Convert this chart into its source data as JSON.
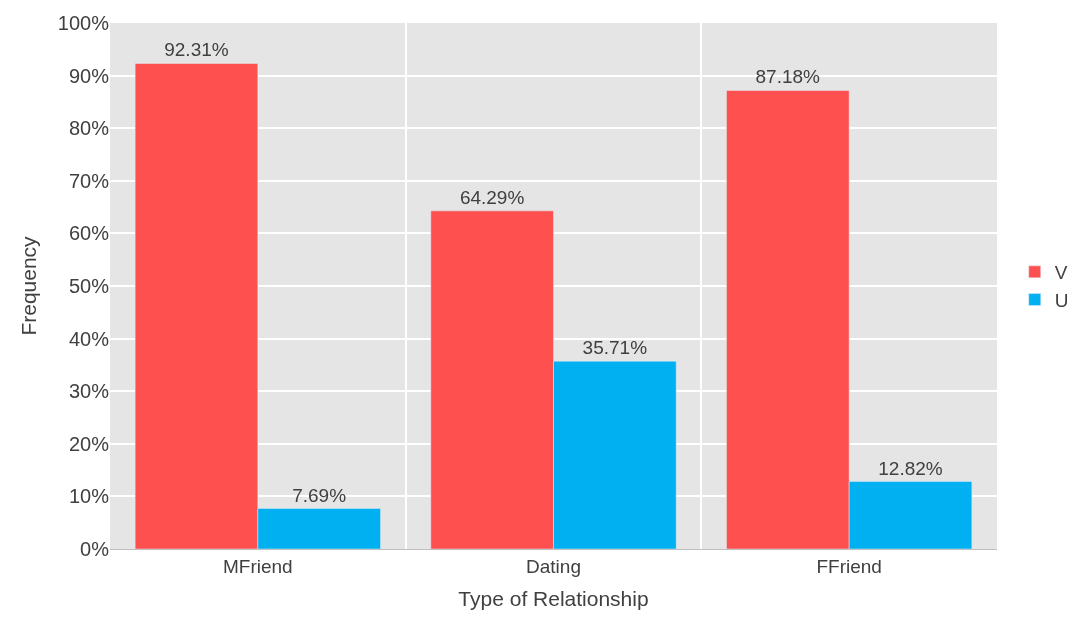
{
  "chart_data": {
    "type": "bar",
    "xlabel": "Type of Relationship",
    "ylabel": "Frequency",
    "categories": [
      "MFriend",
      "Dating",
      "FFriend"
    ],
    "series": [
      {
        "name": "V",
        "color": "#ff5050",
        "values": [
          92.31,
          64.29,
          87.18
        ],
        "value_labels": [
          "92.31%",
          "64.29%",
          "87.18%"
        ]
      },
      {
        "name": "U",
        "color": "#00b0f0",
        "values": [
          7.69,
          35.71,
          12.82
        ],
        "value_labels": [
          "7.69%",
          "35.71%",
          "12.82%"
        ]
      }
    ],
    "ylim": [
      0,
      100
    ],
    "yticks": [
      {
        "value": 0,
        "label": "0%"
      },
      {
        "value": 10,
        "label": "10%"
      },
      {
        "value": 20,
        "label": "20%"
      },
      {
        "value": 30,
        "label": "30%"
      },
      {
        "value": 40,
        "label": "40%"
      },
      {
        "value": 50,
        "label": "50%"
      },
      {
        "value": 60,
        "label": "60%"
      },
      {
        "value": 70,
        "label": "70%"
      },
      {
        "value": 80,
        "label": "80%"
      },
      {
        "value": 90,
        "label": "90%"
      },
      {
        "value": 100,
        "label": "100%"
      }
    ],
    "grid": true,
    "legend": "right"
  }
}
